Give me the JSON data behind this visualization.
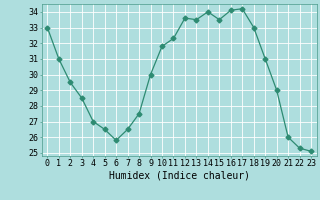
{
  "x": [
    0,
    1,
    2,
    3,
    4,
    5,
    6,
    7,
    8,
    9,
    10,
    11,
    12,
    13,
    14,
    15,
    16,
    17,
    18,
    19,
    20,
    21,
    22,
    23
  ],
  "y": [
    33.0,
    31.0,
    29.5,
    28.5,
    27.0,
    26.5,
    25.8,
    26.5,
    27.5,
    30.0,
    31.8,
    32.3,
    33.6,
    33.5,
    34.0,
    33.5,
    34.1,
    34.2,
    33.0,
    31.0,
    29.0,
    26.0,
    25.3,
    25.1
  ],
  "line_color": "#2e8b72",
  "marker": "D",
  "marker_size": 2.5,
  "bg_color": "#aedede",
  "grid_color": "#ffffff",
  "xlabel": "Humidex (Indice chaleur)",
  "xlabel_fontsize": 7,
  "tick_fontsize": 6,
  "ylim": [
    24.8,
    34.5
  ],
  "xlim": [
    -0.5,
    23.5
  ],
  "yticks": [
    25,
    26,
    27,
    28,
    29,
    30,
    31,
    32,
    33,
    34
  ],
  "xtick_labels": [
    "0",
    "1",
    "2",
    "3",
    "4",
    "5",
    "6",
    "7",
    "8",
    "9",
    "10",
    "11",
    "12",
    "13",
    "14",
    "15",
    "16",
    "17",
    "18",
    "19",
    "20",
    "21",
    "22",
    "23"
  ]
}
